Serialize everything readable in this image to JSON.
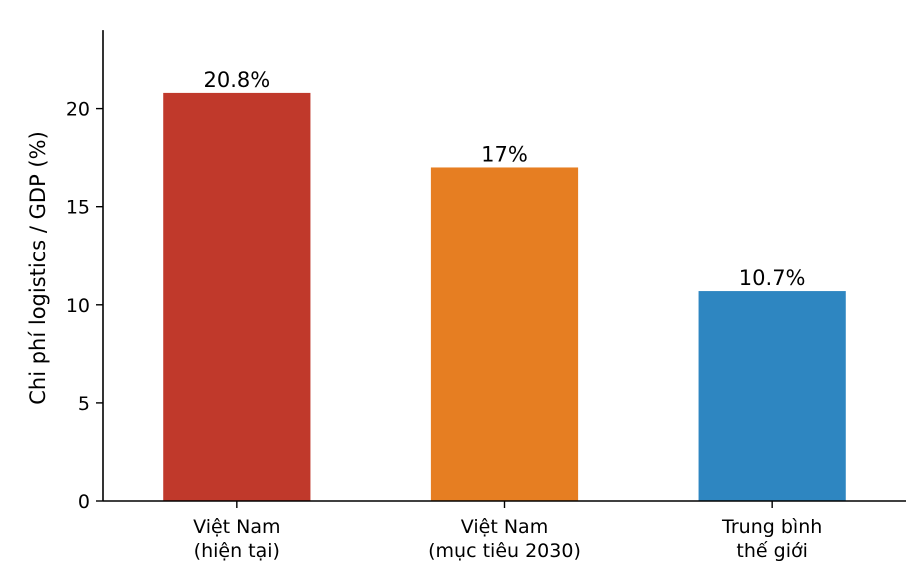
{
  "chart_data": {
    "type": "bar",
    "categories": [
      [
        "Việt Nam",
        "(hiện tại)"
      ],
      [
        "Việt Nam",
        "(mục tiêu 2030)"
      ],
      [
        "Trung bình",
        "thế giới"
      ]
    ],
    "values": [
      20.8,
      17,
      10.7
    ],
    "value_labels": [
      "20.8%",
      "17%",
      "10.7%"
    ],
    "colors": [
      "#c0392b",
      "#e67e22",
      "#2e86c1"
    ],
    "title": "",
    "xlabel": "",
    "ylabel": "Chi phí logistics / GDP (%)",
    "ylim": [
      0,
      24
    ],
    "yticks": [
      0,
      5,
      10,
      15,
      20
    ],
    "grid": false,
    "legend": "none"
  }
}
